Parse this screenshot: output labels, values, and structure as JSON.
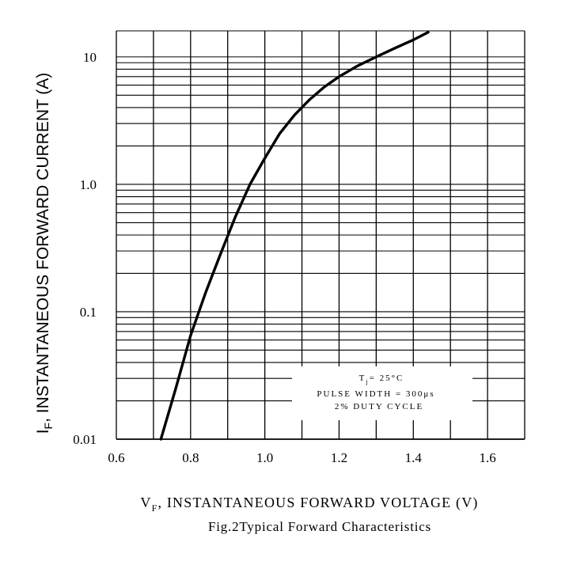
{
  "chart_data": {
    "type": "line",
    "title": "",
    "caption": "Fig.2Typical Forward Characteristics",
    "xlabel": {
      "prefix": "V",
      "sub": "F",
      "rest": ", INSTANTANEOUS FORWARD VOLTAGE (V)"
    },
    "ylabel": {
      "prefix": "I",
      "sub": "F",
      "rest": ", INSTANTANEOUS FORWARD CURRENT (A)"
    },
    "xlim": [
      0.6,
      1.7
    ],
    "ylim": [
      0.01,
      16
    ],
    "yscale": "log",
    "grid": true,
    "xticks": [
      {
        "value": 0.6,
        "label": "0.6"
      },
      {
        "value": 0.8,
        "label": "0.8"
      },
      {
        "value": 1.0,
        "label": "1.0"
      },
      {
        "value": 1.2,
        "label": "1.2"
      },
      {
        "value": 1.4,
        "label": "1.4"
      },
      {
        "value": 1.6,
        "label": "1.6"
      }
    ],
    "yticks": [
      {
        "value": 0.01,
        "label": "0.01"
      },
      {
        "value": 0.1,
        "label": "0.1"
      },
      {
        "value": 1.0,
        "label": "1.0"
      },
      {
        "value": 10,
        "label": "10"
      }
    ],
    "annotation": {
      "lines": [
        {
          "prefix": "T",
          "sub": "j",
          "rest": "= 25°C"
        },
        {
          "prefix": "PULSE WIDTH = 300μs",
          "sub": "",
          "rest": ""
        },
        {
          "prefix": "2% DUTY CYCLE",
          "sub": "",
          "rest": ""
        }
      ]
    },
    "series": [
      {
        "x": [
          0.72,
          0.76,
          0.8,
          0.84,
          0.88,
          0.92,
          0.96,
          1.0,
          1.04,
          1.08,
          1.12,
          1.16,
          1.2,
          1.25,
          1.3,
          1.35,
          1.4,
          1.44
        ],
        "y": [
          0.01,
          0.025,
          0.065,
          0.14,
          0.28,
          0.55,
          1.0,
          1.6,
          2.5,
          3.5,
          4.6,
          5.8,
          7.0,
          8.5,
          10.0,
          11.7,
          13.6,
          15.6
        ]
      }
    ]
  }
}
